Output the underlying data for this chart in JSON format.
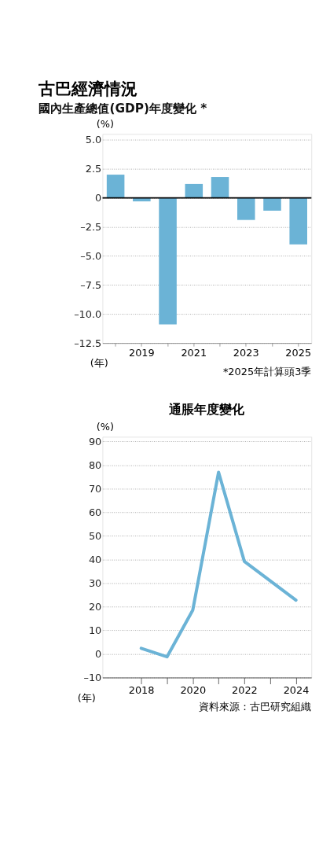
{
  "chart_data": [
    {
      "type": "bar",
      "title": "古巴經濟情況",
      "subtitle": "國內生產總值(GDP)年度變化 *",
      "xlabel": "(年)",
      "ylabel": "(%)",
      "categories": [
        null,
        "2019",
        null,
        "2021",
        null,
        "2023",
        null,
        "2025"
      ],
      "series": [
        {
          "color": "#6bb3d6",
          "values": [
            2.0,
            -0.3,
            -10.9,
            1.2,
            1.8,
            -1.9,
            -1.1,
            -4.0
          ]
        }
      ],
      "ylim": [
        -12.5,
        5.5
      ],
      "yticks": [
        {
          "value": -12.5,
          "label": "–12.5"
        },
        {
          "value": -10,
          "label": "–10.0"
        },
        {
          "value": -7.5,
          "label": "–7.5"
        },
        {
          "value": -5,
          "label": "–5.0"
        },
        {
          "value": -2.5,
          "label": "–2.5"
        },
        0,
        2.5,
        {
          "value": 5,
          "label": "5.0"
        }
      ],
      "grid": "y",
      "ref_lines": [
        {
          "axis": "y",
          "value": 0,
          "color": "#000000"
        }
      ],
      "annotations": [
        "*2025年計算頭3季"
      ]
    },
    {
      "type": "line",
      "title": "通脹年度變化",
      "xlabel": "(年)",
      "ylabel": "(%)",
      "x": [
        2018,
        2019,
        2020,
        2021,
        2022,
        2024
      ],
      "series": [
        {
          "color": "#6bb3d6",
          "values": [
            2.4,
            -1.2,
            18.6,
            77.0,
            39.2,
            22.8
          ]
        }
      ],
      "xlim": [
        2016.5,
        2024.6
      ],
      "xticks": [
        2018,
        {
          "value": 2019,
          "label": null
        },
        2020,
        {
          "value": 2021,
          "label": null
        },
        2022,
        {
          "value": 2023,
          "label": null
        },
        2024
      ],
      "ylim": [
        -10,
        92
      ],
      "yticks": [
        {
          "value": -10,
          "label": "–10"
        },
        0,
        10,
        20,
        30,
        40,
        50,
        60,
        70,
        80,
        90
      ],
      "grid": "y",
      "marker": "none",
      "line_style": "solid",
      "annotations": [
        "資料來源：古巴研究組織"
      ]
    }
  ]
}
